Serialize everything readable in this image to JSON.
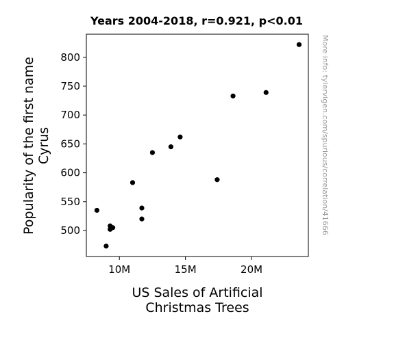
{
  "chart_data": {
    "type": "scatter",
    "title": "Years 2004-2018, r=0.921, p<0.01",
    "xlabel_lines": [
      "US Sales of Artificial",
      "Christmas Trees"
    ],
    "ylabel_lines": [
      "Popularity of the first name",
      "Cyrus"
    ],
    "watermark": "More info: tylervigen.com/spurious/correlation/41666",
    "xlim": [
      7500000,
      24300000
    ],
    "ylim": [
      455,
      840
    ],
    "xticks": [
      {
        "value": 10000000,
        "label": "10M"
      },
      {
        "value": 15000000,
        "label": "15M"
      },
      {
        "value": 20000000,
        "label": "20M"
      }
    ],
    "yticks": [
      {
        "value": 500,
        "label": "500"
      },
      {
        "value": 550,
        "label": "550"
      },
      {
        "value": 600,
        "label": "600"
      },
      {
        "value": 650,
        "label": "650"
      },
      {
        "value": 700,
        "label": "700"
      },
      {
        "value": 750,
        "label": "750"
      },
      {
        "value": 800,
        "label": "800"
      }
    ],
    "points": [
      {
        "x": 8300000,
        "y": 535
      },
      {
        "x": 9000000,
        "y": 473
      },
      {
        "x": 9300000,
        "y": 502
      },
      {
        "x": 9300000,
        "y": 508
      },
      {
        "x": 9500000,
        "y": 505
      },
      {
        "x": 11000000,
        "y": 583
      },
      {
        "x": 11700000,
        "y": 520
      },
      {
        "x": 11700000,
        "y": 539
      },
      {
        "x": 12500000,
        "y": 635
      },
      {
        "x": 13900000,
        "y": 645
      },
      {
        "x": 14600000,
        "y": 662
      },
      {
        "x": 17400000,
        "y": 588
      },
      {
        "x": 18600000,
        "y": 733
      },
      {
        "x": 21100000,
        "y": 739
      },
      {
        "x": 23600000,
        "y": 822
      }
    ],
    "grid": false,
    "marker_color": "#000000"
  }
}
